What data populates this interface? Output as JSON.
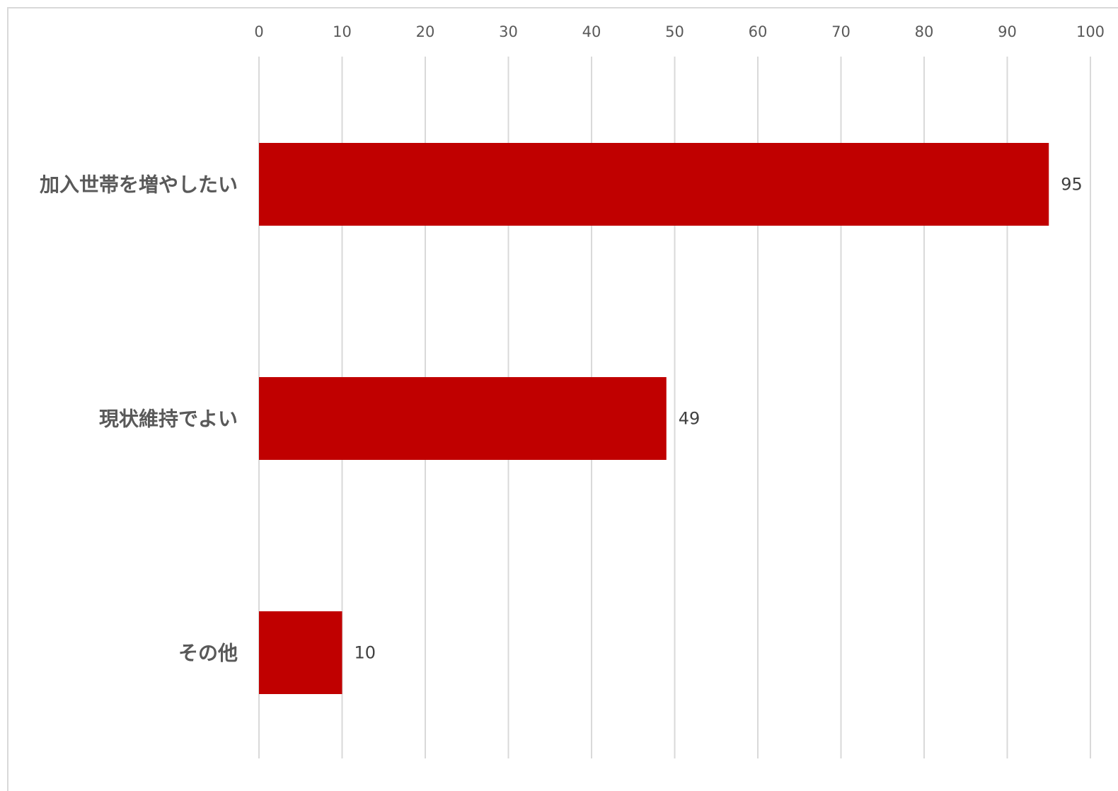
{
  "chart_data": {
    "type": "bar",
    "orientation": "horizontal",
    "categories": [
      "加入世帯を増やしたい",
      "現状維持でよい",
      "その他"
    ],
    "values": [
      95,
      49,
      10
    ],
    "data_labels": [
      "95",
      "49",
      "10"
    ],
    "title": "",
    "xlabel": "",
    "ylabel": "",
    "xlim": [
      0,
      100
    ],
    "x_ticks": [
      "0",
      "10",
      "20",
      "30",
      "40",
      "50",
      "60",
      "70",
      "80",
      "90",
      "100"
    ],
    "axis_position": "top",
    "grid": true,
    "legend": "none",
    "bar_color": "#C00000",
    "grid_color": "#D9D9D9"
  }
}
